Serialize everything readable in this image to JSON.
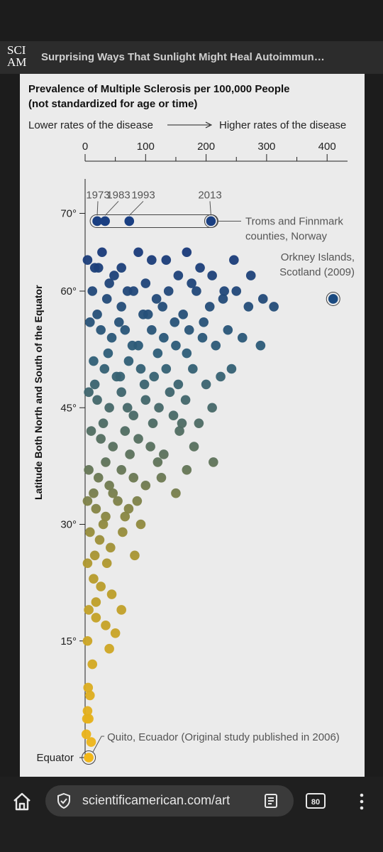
{
  "header": {
    "logo_line1": "SCI",
    "logo_line2": "AM",
    "title": "Surprising Ways That Sunlight Might Heal Autoimmun…"
  },
  "colors": {
    "high_latitude": "#163a7a",
    "mid_latitude": "#3b6b72",
    "low_latitude": "#e5ad1e",
    "panel_bg": "#ebebeb"
  },
  "chart_data": {
    "type": "scatter",
    "title": "Prevalence of Multiple Sclerosis per 100,000 People",
    "subtitle": "(not standardized for age or time)",
    "direction_left": "Lower rates of the disease",
    "direction_right": "Higher rates of the disease",
    "xlabel": "",
    "ylabel": "Latitude Both North and South of the Equator",
    "xlim": [
      0,
      420
    ],
    "ylim": [
      0,
      75
    ],
    "x_ticks": [
      "0",
      "100",
      "200",
      "300",
      "400"
    ],
    "y_ticks": [
      "15°",
      "30°",
      "45°",
      "60°",
      "70°"
    ],
    "y_origin_label": "Equator",
    "grid": false,
    "series": [
      {
        "points": [
          [
            4,
            64
          ],
          [
            16,
            63
          ],
          [
            28,
            65
          ],
          [
            48,
            62
          ],
          [
            60,
            63
          ],
          [
            88,
            65
          ],
          [
            110,
            64
          ],
          [
            134,
            64
          ],
          [
            154,
            62
          ],
          [
            168,
            65
          ],
          [
            190,
            63
          ],
          [
            210,
            62
          ],
          [
            246,
            64
          ],
          [
            274,
            62
          ],
          [
            12,
            60
          ],
          [
            36,
            59
          ],
          [
            60,
            58
          ],
          [
            80,
            60
          ],
          [
            96,
            57
          ],
          [
            118,
            59
          ],
          [
            138,
            60
          ],
          [
            162,
            57
          ],
          [
            184,
            60
          ],
          [
            206,
            58
          ],
          [
            228,
            59
          ],
          [
            250,
            60
          ],
          [
            270,
            58
          ],
          [
            294,
            59
          ],
          [
            312,
            58
          ],
          [
            8,
            56
          ],
          [
            26,
            55
          ],
          [
            44,
            54
          ],
          [
            66,
            55
          ],
          [
            88,
            53
          ],
          [
            110,
            55
          ],
          [
            130,
            54
          ],
          [
            150,
            53
          ],
          [
            172,
            55
          ],
          [
            194,
            54
          ],
          [
            216,
            53
          ],
          [
            236,
            55
          ],
          [
            260,
            54
          ],
          [
            290,
            53
          ],
          [
            14,
            51
          ],
          [
            32,
            50
          ],
          [
            52,
            49
          ],
          [
            72,
            51
          ],
          [
            92,
            50
          ],
          [
            114,
            49
          ],
          [
            134,
            50
          ],
          [
            154,
            48
          ],
          [
            178,
            50
          ],
          [
            200,
            48
          ],
          [
            224,
            49
          ],
          [
            6,
            47
          ],
          [
            20,
            46
          ],
          [
            40,
            45
          ],
          [
            60,
            47
          ],
          [
            80,
            44
          ],
          [
            100,
            46
          ],
          [
            122,
            45
          ],
          [
            146,
            44
          ],
          [
            166,
            46
          ],
          [
            188,
            43
          ],
          [
            210,
            45
          ],
          [
            10,
            42
          ],
          [
            26,
            41
          ],
          [
            46,
            40
          ],
          [
            66,
            42
          ],
          [
            88,
            41
          ],
          [
            108,
            40
          ],
          [
            130,
            39
          ],
          [
            156,
            42
          ],
          [
            180,
            40
          ],
          [
            212,
            38
          ],
          [
            6,
            37
          ],
          [
            22,
            36
          ],
          [
            40,
            35
          ],
          [
            60,
            37
          ],
          [
            80,
            36
          ],
          [
            100,
            35
          ],
          [
            126,
            36
          ],
          [
            150,
            34
          ],
          [
            4,
            33
          ],
          [
            18,
            32
          ],
          [
            34,
            31
          ],
          [
            54,
            33
          ],
          [
            72,
            32
          ],
          [
            92,
            30
          ],
          [
            8,
            29
          ],
          [
            24,
            28
          ],
          [
            42,
            27
          ],
          [
            62,
            29
          ],
          [
            82,
            26
          ],
          [
            4,
            25
          ],
          [
            14,
            23
          ],
          [
            26,
            22
          ],
          [
            44,
            21
          ],
          [
            60,
            19
          ],
          [
            6,
            19
          ],
          [
            18,
            18
          ],
          [
            34,
            17
          ],
          [
            50,
            16
          ],
          [
            4,
            15
          ],
          [
            12,
            12
          ],
          [
            8,
            8
          ],
          [
            4,
            6
          ],
          [
            6,
            5
          ],
          [
            2,
            3
          ],
          [
            10,
            2
          ],
          [
            22,
            63
          ],
          [
            40,
            61
          ],
          [
            70,
            60
          ],
          [
            100,
            61
          ],
          [
            128,
            58
          ],
          [
            176,
            61
          ],
          [
            230,
            60
          ],
          [
            20,
            57
          ],
          [
            56,
            56
          ],
          [
            104,
            57
          ],
          [
            148,
            56
          ],
          [
            196,
            56
          ],
          [
            38,
            52
          ],
          [
            78,
            53
          ],
          [
            120,
            52
          ],
          [
            168,
            52
          ],
          [
            242,
            50
          ],
          [
            16,
            48
          ],
          [
            58,
            49
          ],
          [
            98,
            48
          ],
          [
            140,
            47
          ],
          [
            30,
            43
          ],
          [
            70,
            45
          ],
          [
            112,
            43
          ],
          [
            160,
            43
          ],
          [
            34,
            38
          ],
          [
            74,
            39
          ],
          [
            120,
            38
          ],
          [
            168,
            37
          ],
          [
            14,
            34
          ],
          [
            46,
            34
          ],
          [
            86,
            33
          ],
          [
            30,
            30
          ],
          [
            66,
            31
          ],
          [
            16,
            26
          ],
          [
            36,
            25
          ],
          [
            18,
            20
          ],
          [
            40,
            14
          ],
          [
            5,
            9
          ],
          [
            3,
            5
          ]
        ]
      },
      {
        "name": "Troms and Finnmark counties, Norway",
        "points": [
          [
            20,
            69
          ],
          [
            33,
            69
          ],
          [
            73,
            69
          ],
          [
            208,
            69
          ]
        ],
        "labels": [
          "1973",
          "1983",
          "1993",
          "2013"
        ]
      },
      {
        "name": "Orkney Islands, Scotland (2009)",
        "points": [
          [
            410,
            59
          ]
        ]
      },
      {
        "name": "Quito, Ecuador (Original study published in 2006)",
        "points": [
          [
            6,
            0
          ]
        ]
      }
    ],
    "annotations": {
      "troms_line1": "Troms and Finnmark",
      "troms_line2": "counties, Norway",
      "orkney_line1": "Orkney Islands,",
      "orkney_line2": "Scotland (2009)",
      "quito": "Quito, Ecuador (Original study published in 2006)"
    }
  },
  "bottom_bar": {
    "url": "scientificamerican.com/art",
    "tabs_count": "80"
  }
}
